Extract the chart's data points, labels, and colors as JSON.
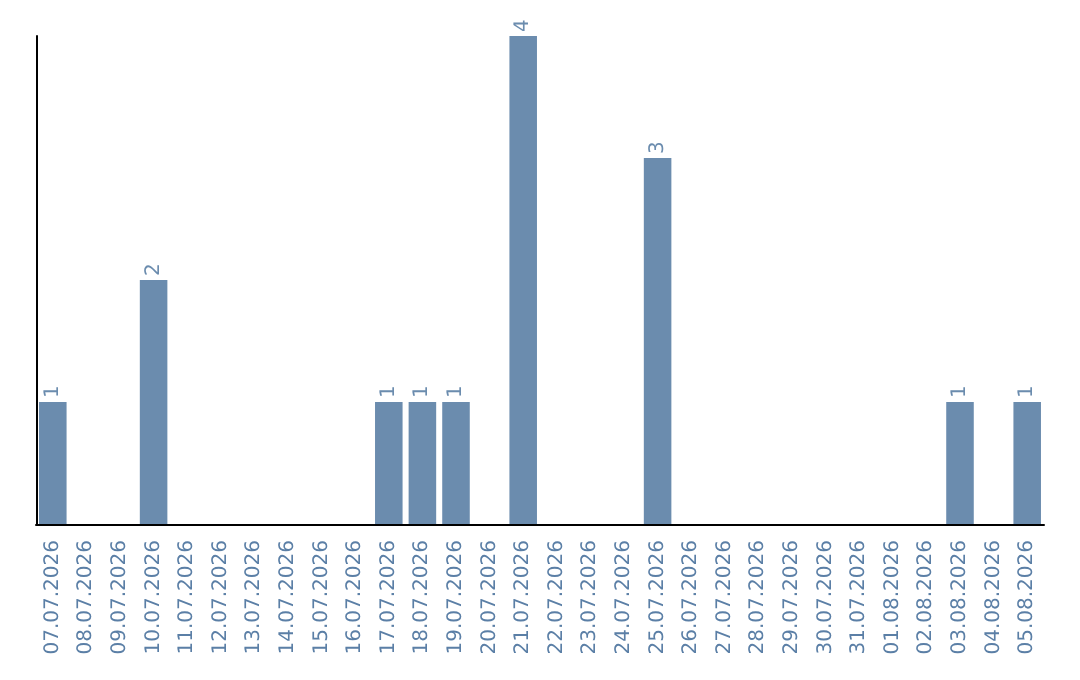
{
  "chart_data": {
    "type": "bar",
    "categories": [
      "07.07.2026",
      "08.07.2026",
      "09.07.2026",
      "10.07.2026",
      "11.07.2026",
      "12.07.2026",
      "13.07.2026",
      "14.07.2026",
      "15.07.2026",
      "16.07.2026",
      "17.07.2026",
      "18.07.2026",
      "19.07.2026",
      "20.07.2026",
      "21.07.2026",
      "22.07.2026",
      "23.07.2026",
      "24.07.2026",
      "25.07.2026",
      "26.07.2026",
      "27.07.2026",
      "28.07.2026",
      "29.07.2026",
      "30.07.2026",
      "31.07.2026",
      "01.08.2026",
      "02.08.2026",
      "03.08.2026",
      "04.08.2026",
      "05.08.2026"
    ],
    "values": [
      1,
      0,
      0,
      2,
      0,
      0,
      0,
      0,
      0,
      0,
      1,
      1,
      1,
      0,
      4,
      0,
      0,
      0,
      3,
      0,
      0,
      0,
      0,
      0,
      0,
      0,
      0,
      1,
      0,
      1
    ],
    "value_labels": [
      "1",
      null,
      null,
      "2",
      null,
      null,
      null,
      null,
      null,
      null,
      "1",
      "1",
      "1",
      null,
      "4",
      null,
      null,
      null,
      "3",
      null,
      null,
      null,
      null,
      null,
      null,
      null,
      null,
      "1",
      null,
      "1"
    ],
    "color": "#6b8cae",
    "tick_labels": "x"
  }
}
